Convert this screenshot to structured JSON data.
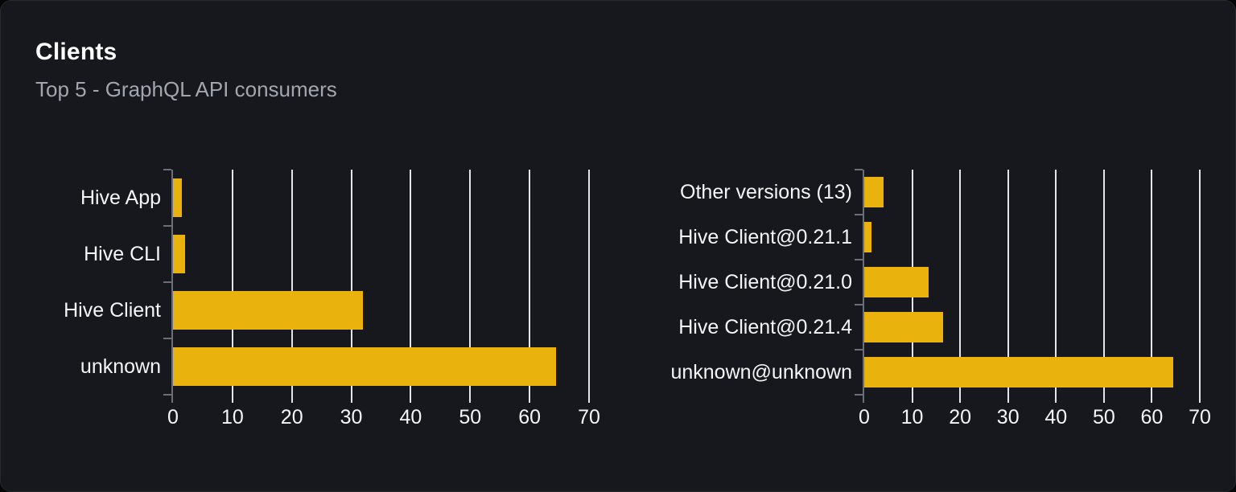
{
  "header": {
    "title": "Clients",
    "subtitle": "Top 5 - GraphQL API consumers"
  },
  "colors": {
    "page_bg": "#060607",
    "card_bg": "#16181D",
    "bar": "#E9B20C",
    "gridline": "#E2E5EE",
    "axis": "#6B7078",
    "tick_label": "#F4F5F7",
    "category_label": "#F4F5F7",
    "title": "#FFFFFF",
    "subtitle": "#A2A6AE"
  },
  "chart_data": [
    {
      "type": "bar",
      "name": "clients-by-name",
      "orientation": "horizontal",
      "categories": [
        "Hive App",
        "Hive CLI",
        "Hive Client",
        "unknown"
      ],
      "values": [
        1.5,
        2,
        32,
        64.5
      ],
      "xlim": [
        0,
        70
      ],
      "xticks": [
        0,
        10,
        20,
        30,
        40,
        50,
        60,
        70
      ],
      "grid": true,
      "legend": "none",
      "title": "",
      "xlabel": "",
      "ylabel": ""
    },
    {
      "type": "bar",
      "name": "clients-by-version",
      "orientation": "horizontal",
      "categories": [
        "Other versions (13)",
        "Hive Client@0.21.1",
        "Hive Client@0.21.0",
        "Hive Client@0.21.4",
        "unknown@unknown"
      ],
      "values": [
        4,
        1.5,
        13.5,
        16.5,
        64.5
      ],
      "xlim": [
        0,
        70
      ],
      "xticks": [
        0,
        10,
        20,
        30,
        40,
        50,
        60,
        70
      ],
      "grid": true,
      "legend": "none",
      "title": "",
      "xlabel": "",
      "ylabel": ""
    }
  ]
}
